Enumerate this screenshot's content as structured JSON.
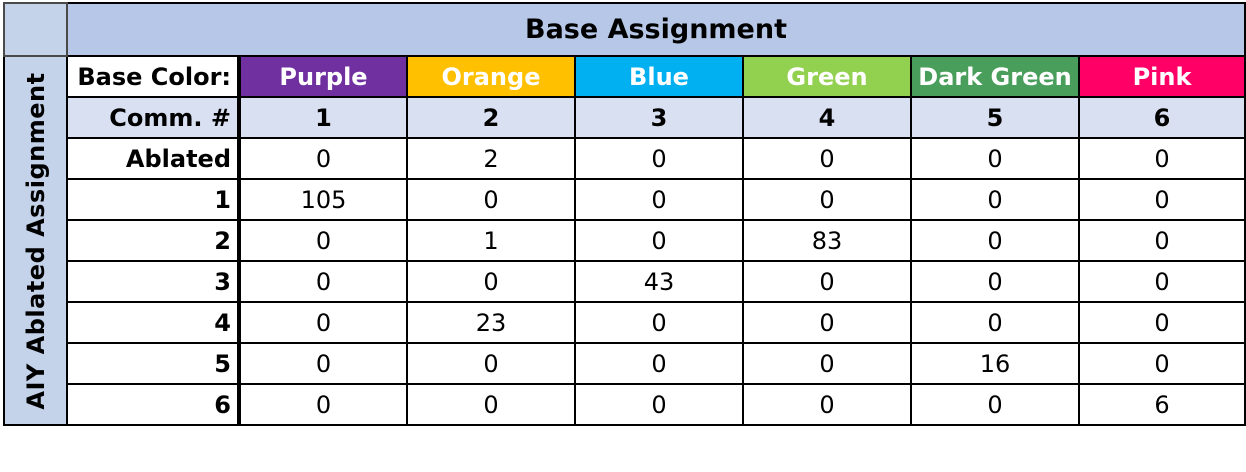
{
  "title": "Base Assignment",
  "side_label": "AIY Ablated  Assignment",
  "base_color_label": "Base Color:",
  "comm_label": "Comm. #",
  "colors": [
    {
      "name": "Purple",
      "hex": "#7030a0"
    },
    {
      "name": "Orange",
      "hex": "#ffc000"
    },
    {
      "name": "Blue",
      "hex": "#00b0f0"
    },
    {
      "name": "Green",
      "hex": "#92d050"
    },
    {
      "name": "Dark Green",
      "hex": "#4a9e5c"
    },
    {
      "name": "Pink",
      "hex": "#ff0066"
    }
  ],
  "comm_numbers": [
    "1",
    "2",
    "3",
    "4",
    "5",
    "6"
  ],
  "rows": [
    {
      "label": "Ablated",
      "values": [
        "0",
        "2",
        "0",
        "0",
        "0",
        "0"
      ]
    },
    {
      "label": "1",
      "values": [
        "105",
        "0",
        "0",
        "0",
        "0",
        "0"
      ]
    },
    {
      "label": "2",
      "values": [
        "0",
        "1",
        "0",
        "83",
        "0",
        "0"
      ]
    },
    {
      "label": "3",
      "values": [
        "0",
        "0",
        "43",
        "0",
        "0",
        "0"
      ]
    },
    {
      "label": "4",
      "values": [
        "0",
        "23",
        "0",
        "0",
        "0",
        "0"
      ]
    },
    {
      "label": "5",
      "values": [
        "0",
        "0",
        "0",
        "0",
        "16",
        "0"
      ]
    },
    {
      "label": "6",
      "values": [
        "0",
        "0",
        "0",
        "0",
        "0",
        "6"
      ]
    }
  ]
}
